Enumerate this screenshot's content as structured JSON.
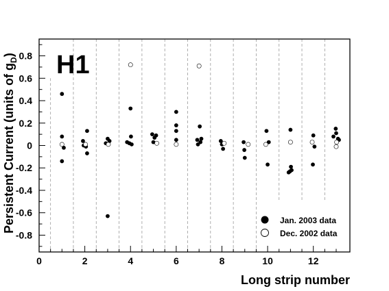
{
  "chart_data": {
    "type": "scatter",
    "panel_label": "H1",
    "title": "",
    "xlabel": "Long strip number",
    "ylabel_main": "Persistent Current (units of g",
    "ylabel_sub": "D",
    "ylabel_close": ")",
    "xlim": [
      0,
      13.6
    ],
    "ylim": [
      -0.95,
      0.95
    ],
    "x_ticks": [
      0,
      2,
      4,
      6,
      8,
      10,
      12
    ],
    "x_tick_labels": [
      "0",
      "2",
      "4",
      "6",
      "8",
      "10",
      "12"
    ],
    "y_ticks": [
      -0.8,
      -0.6,
      -0.4,
      -0.2,
      0,
      0.2,
      0.4,
      0.6,
      0.8
    ],
    "y_tick_labels": [
      "-0.8",
      "-0.6",
      "-0.4",
      "-0.2",
      "0",
      "0.2",
      "0.4",
      "0.6",
      "0.8"
    ],
    "separators": [
      0.5,
      1.5,
      2.5,
      3.5,
      4.5,
      5.5,
      6.5,
      7.5,
      8.5,
      9.5,
      10.5,
      11.5,
      12.5
    ],
    "separator_spans": [
      [
        -0.95,
        0.6
      ],
      [
        -0.95,
        0.95
      ],
      [
        -0.95,
        0.95
      ],
      [
        -0.95,
        0.95
      ],
      [
        -0.95,
        0.95
      ],
      [
        -0.95,
        0.95
      ],
      [
        -0.95,
        0.95
      ],
      [
        -0.95,
        0.95
      ],
      [
        -0.95,
        0.95
      ],
      [
        -0.95,
        0.95
      ],
      [
        -0.5,
        0.95
      ],
      [
        -0.5,
        0.95
      ],
      [
        -0.5,
        0.95
      ]
    ],
    "legend_position": "bottom-right",
    "series": [
      {
        "name": "Jan. 2003 data",
        "marker": "filled-circle",
        "points": [
          [
            1.0,
            0.46
          ],
          [
            1.0,
            0.08
          ],
          [
            1.08,
            -0.02
          ],
          [
            1.0,
            -0.14
          ],
          [
            1.92,
            0.04
          ],
          [
            1.95,
            0.0
          ],
          [
            2.05,
            -0.01
          ],
          [
            2.1,
            0.13
          ],
          [
            2.1,
            -0.07
          ],
          [
            2.92,
            0.02
          ],
          [
            3.0,
            0.06
          ],
          [
            3.08,
            0.04
          ],
          [
            3.0,
            -0.63
          ],
          [
            3.85,
            0.03
          ],
          [
            3.95,
            0.02
          ],
          [
            4.0,
            0.33
          ],
          [
            4.02,
            0.08
          ],
          [
            4.05,
            0.01
          ],
          [
            4.95,
            0.1
          ],
          [
            5.0,
            0.03
          ],
          [
            5.05,
            0.07
          ],
          [
            5.12,
            0.09
          ],
          [
            6.0,
            0.3
          ],
          [
            6.0,
            0.18
          ],
          [
            6.0,
            0.13
          ],
          [
            6.0,
            0.05
          ],
          [
            6.92,
            0.05
          ],
          [
            6.95,
            0.01
          ],
          [
            7.03,
            0.17
          ],
          [
            7.06,
            0.03
          ],
          [
            7.1,
            0.06
          ],
          [
            7.95,
            0.04
          ],
          [
            8.0,
            0.01
          ],
          [
            8.05,
            -0.03
          ],
          [
            8.95,
            0.03
          ],
          [
            8.98,
            -0.04
          ],
          [
            9.0,
            -0.11
          ],
          [
            9.95,
            0.13
          ],
          [
            10.05,
            0.03
          ],
          [
            10.0,
            -0.17
          ],
          [
            10.92,
            -0.24
          ],
          [
            10.98,
            -0.23
          ],
          [
            11.02,
            -0.19
          ],
          [
            11.05,
            -0.22
          ],
          [
            11.0,
            0.14
          ],
          [
            12.0,
            0.09
          ],
          [
            12.05,
            -0.01
          ],
          [
            11.98,
            -0.17
          ],
          [
            12.88,
            0.08
          ],
          [
            12.98,
            0.15
          ],
          [
            13.0,
            0.11
          ],
          [
            13.08,
            0.06
          ],
          [
            13.12,
            0.05
          ]
        ]
      },
      {
        "name": "Dec. 2002 data",
        "marker": "open-circle",
        "points": [
          [
            1.0,
            0.01
          ],
          [
            2.03,
            0.01
          ],
          [
            3.03,
            0.01
          ],
          [
            4.0,
            0.72
          ],
          [
            5.15,
            0.02
          ],
          [
            6.0,
            0.01
          ],
          [
            7.0,
            0.71
          ],
          [
            8.1,
            0.02
          ],
          [
            9.15,
            0.01
          ],
          [
            9.92,
            0.01
          ],
          [
            11.0,
            0.03
          ],
          [
            11.95,
            0.03
          ],
          [
            13.0,
            -0.01
          ],
          [
            13.02,
            0.03
          ]
        ]
      }
    ]
  }
}
